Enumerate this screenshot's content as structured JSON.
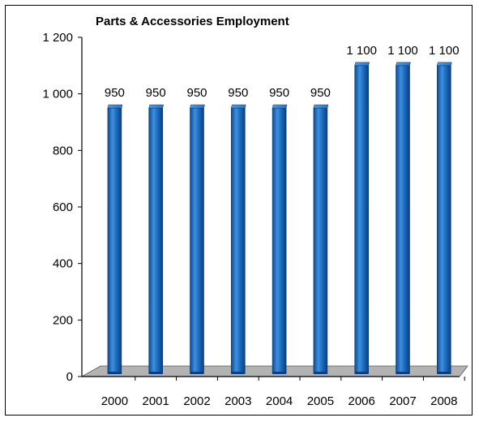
{
  "chart_data": {
    "type": "bar",
    "title": "Parts & Accessories  Employment",
    "xlabel": "",
    "ylabel": "",
    "categories": [
      "2000",
      "2001",
      "2002",
      "2003",
      "2004",
      "2005",
      "2006",
      "2007",
      "2008"
    ],
    "values": [
      950,
      950,
      950,
      950,
      950,
      950,
      1100,
      1100,
      1100
    ],
    "data_labels": [
      "950",
      "950",
      "950",
      "950",
      "950",
      "950",
      "1 100",
      "1 100",
      "1 100"
    ],
    "ylim": [
      0,
      1200
    ],
    "yticks": [
      0,
      200,
      400,
      600,
      800,
      1000,
      1200
    ],
    "ytick_labels": [
      "0",
      "200",
      "400",
      "600",
      "800",
      "1 000",
      "1 200"
    ],
    "grid": false,
    "legend": "none",
    "bar_color": "#1f6fc2",
    "floor_color": "#b3b3b3"
  }
}
